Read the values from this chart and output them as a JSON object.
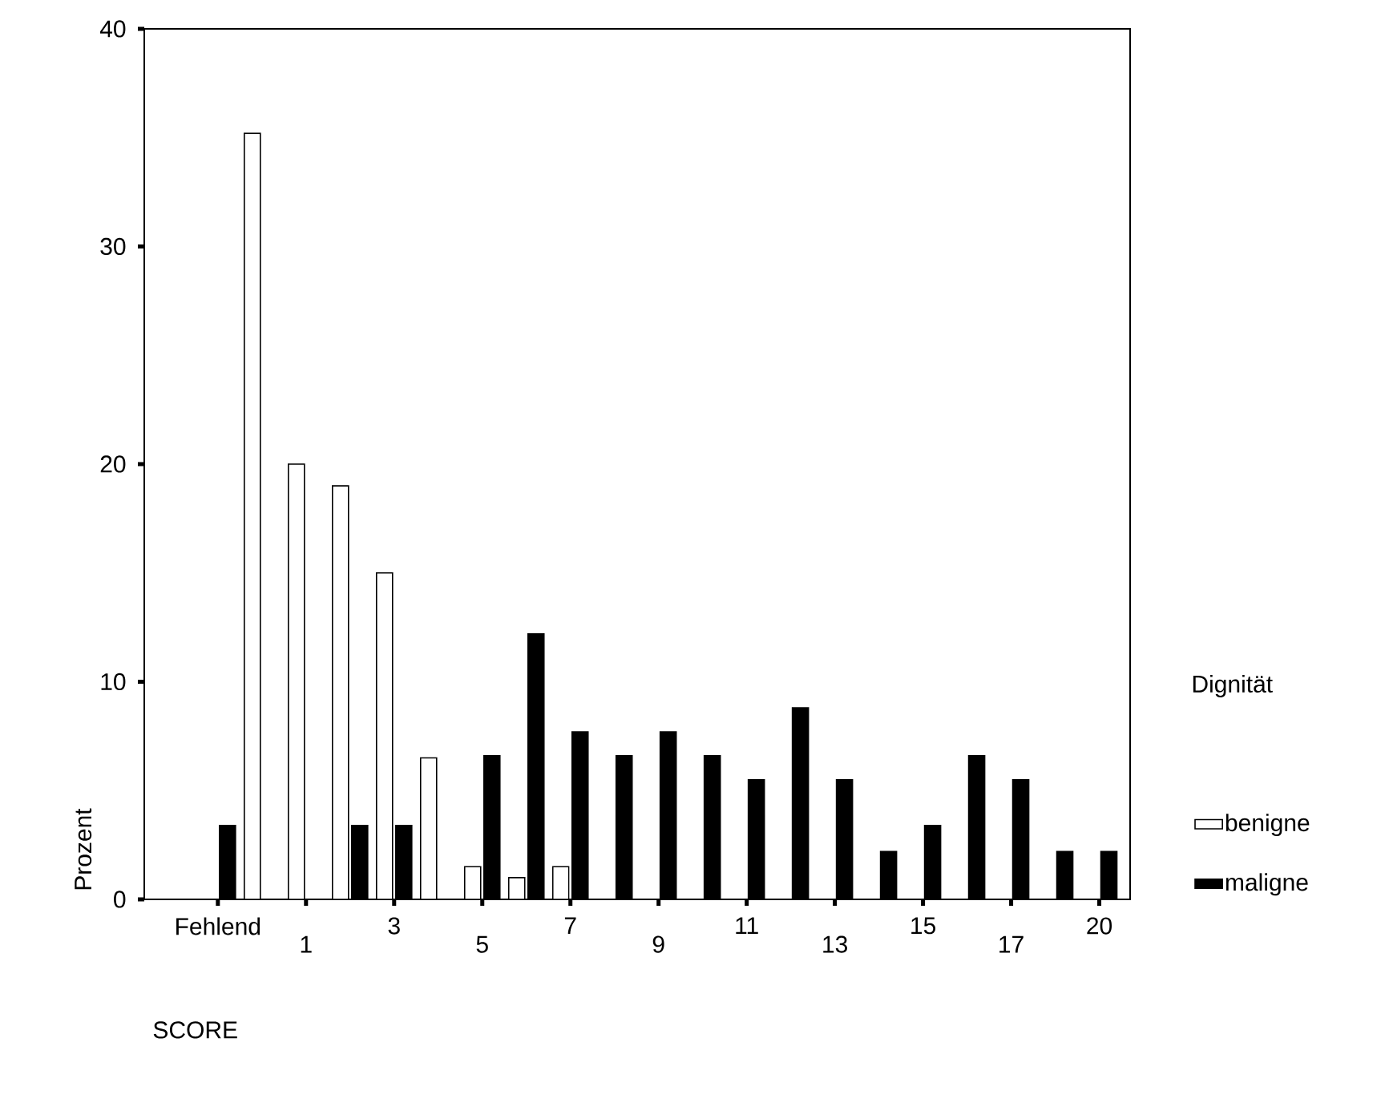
{
  "chart_data": {
    "type": "bar",
    "categories": [
      "Fehlend",
      null,
      "1",
      null,
      "3",
      null,
      "5",
      null,
      "7",
      null,
      "9",
      null,
      "11",
      null,
      "13",
      null,
      "15",
      null,
      "17",
      null,
      "20"
    ],
    "series": [
      {
        "name": "benigne",
        "color": "#ffffff",
        "values": [
          0,
          35.2,
          20.0,
          19.0,
          15.0,
          6.5,
          1.5,
          1.0,
          1.5,
          0,
          0,
          0,
          0,
          0,
          0,
          0,
          0,
          0,
          0,
          0,
          0
        ]
      },
      {
        "name": "maligne",
        "color": "#000000",
        "values": [
          3.4,
          0,
          0,
          3.4,
          3.4,
          0,
          6.6,
          12.2,
          7.7,
          6.6,
          7.7,
          6.6,
          5.5,
          8.8,
          5.5,
          2.2,
          3.4,
          6.6,
          5.5,
          2.2,
          2.2
        ]
      }
    ],
    "xlabel": "SCORE",
    "ylabel": "Prozent",
    "legend_title": "Dignität",
    "ylim": [
      0,
      40
    ],
    "yticks": [
      0,
      10,
      20,
      30,
      40
    ],
    "legend": "right",
    "grid": false
  }
}
